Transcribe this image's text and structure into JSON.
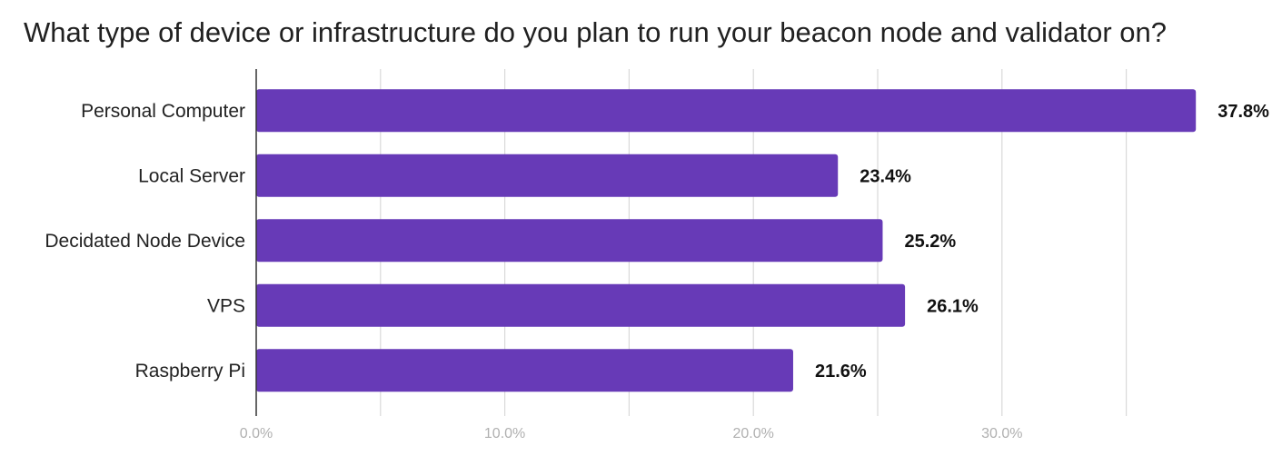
{
  "chart_data": {
    "type": "bar",
    "orientation": "horizontal",
    "title": "What type of device or infrastructure do you plan to run your beacon node and validator on?",
    "categories": [
      "Personal Computer",
      "Local Server",
      "Decidated Node Device",
      "VPS",
      "Raspberry Pi"
    ],
    "values": [
      37.8,
      23.4,
      25.2,
      26.1,
      21.6
    ],
    "value_labels": [
      "37.8%",
      "23.4%",
      "25.2%",
      "26.1%",
      "21.6%"
    ],
    "xticks": [
      0,
      10,
      20,
      30
    ],
    "xtick_labels": [
      "0.0%",
      "10.0%",
      "20.0%",
      "30.0%"
    ],
    "xlim": [
      0,
      40
    ],
    "minor_gridlines": [
      5,
      15,
      25,
      35
    ],
    "grid": true,
    "xlabel": "",
    "ylabel": "",
    "bar_color": "#673ab7"
  }
}
